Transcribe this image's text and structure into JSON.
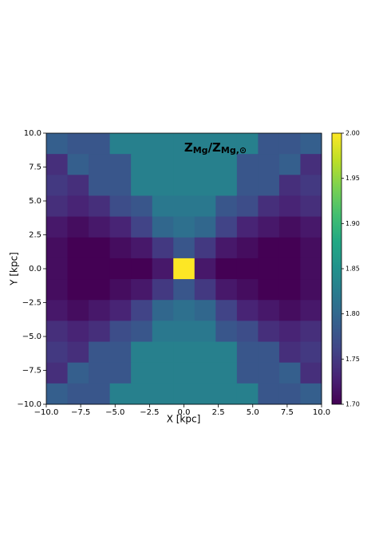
{
  "chart_data": {
    "type": "heatmap",
    "title": [
      "Z",
      "Mg",
      "/Z",
      "Mg,⊙"
    ],
    "x_label": "X [kpc]",
    "y_label": "Y [kpc]",
    "xlim": [
      -10,
      10
    ],
    "ylim": [
      -10,
      10
    ],
    "xticks": [
      {
        "value": -10,
        "label": "−10.0"
      },
      {
        "value": -7.5,
        "label": "−7.5"
      },
      {
        "value": -5,
        "label": "−5.0"
      },
      {
        "value": -2.5,
        "label": "−2.5"
      },
      {
        "value": 0,
        "label": "0.0"
      },
      {
        "value": 2.5,
        "label": "2.5"
      },
      {
        "value": 5,
        "label": "5.0"
      },
      {
        "value": 7.5,
        "label": "7.5"
      },
      {
        "value": 10,
        "label": "10.0"
      }
    ],
    "yticks": [
      {
        "value": -10,
        "label": "−10.0"
      },
      {
        "value": -7.5,
        "label": "−7.5"
      },
      {
        "value": -5,
        "label": "−5.0"
      },
      {
        "value": -2.5,
        "label": "−2.5"
      },
      {
        "value": 0,
        "label": "0.0"
      },
      {
        "value": 2.5,
        "label": "2.5"
      },
      {
        "value": 5,
        "label": "5.0"
      },
      {
        "value": 7.5,
        "label": "7.5"
      },
      {
        "value": 10,
        "label": "10.0"
      }
    ],
    "colormap": "viridis",
    "clim": [
      1.7,
      2.0
    ],
    "cticks": [
      {
        "value": 1.7,
        "label": "1.70"
      },
      1.75,
      {
        "value": 1.8,
        "label": "1.80"
      },
      1.85,
      {
        "value": 1.9,
        "label": "1.90"
      },
      1.95,
      {
        "value": 2.0,
        "label": "2.00"
      }
    ],
    "z": [
      [
        1.79,
        1.78,
        1.78,
        1.83,
        1.83,
        1.83,
        1.83,
        1.83,
        1.83,
        1.83,
        1.78,
        1.78,
        1.79
      ],
      [
        1.74,
        1.79,
        1.78,
        1.78,
        1.83,
        1.83,
        1.83,
        1.83,
        1.83,
        1.78,
        1.78,
        1.79,
        1.74
      ],
      [
        1.75,
        1.74,
        1.78,
        1.78,
        1.83,
        1.83,
        1.83,
        1.83,
        1.83,
        1.78,
        1.78,
        1.74,
        1.75
      ],
      [
        1.74,
        1.73,
        1.74,
        1.77,
        1.78,
        1.82,
        1.82,
        1.82,
        1.78,
        1.77,
        1.74,
        1.73,
        1.74
      ],
      [
        1.72,
        1.71,
        1.72,
        1.73,
        1.76,
        1.8,
        1.81,
        1.8,
        1.76,
        1.73,
        1.72,
        1.71,
        1.72
      ],
      [
        1.71,
        1.7,
        1.7,
        1.71,
        1.72,
        1.75,
        1.78,
        1.75,
        1.72,
        1.71,
        1.7,
        1.7,
        1.71
      ],
      [
        1.71,
        1.7,
        1.7,
        1.7,
        1.7,
        1.72,
        2.0,
        1.72,
        1.7,
        1.7,
        1.7,
        1.7,
        1.71
      ],
      [
        1.71,
        1.7,
        1.7,
        1.71,
        1.72,
        1.75,
        1.78,
        1.75,
        1.72,
        1.71,
        1.7,
        1.7,
        1.71
      ],
      [
        1.72,
        1.71,
        1.72,
        1.73,
        1.76,
        1.8,
        1.81,
        1.8,
        1.76,
        1.73,
        1.72,
        1.71,
        1.72
      ],
      [
        1.74,
        1.73,
        1.74,
        1.77,
        1.78,
        1.82,
        1.82,
        1.82,
        1.78,
        1.77,
        1.74,
        1.73,
        1.74
      ],
      [
        1.75,
        1.74,
        1.78,
        1.78,
        1.83,
        1.83,
        1.83,
        1.83,
        1.83,
        1.78,
        1.78,
        1.74,
        1.75
      ],
      [
        1.74,
        1.79,
        1.78,
        1.78,
        1.83,
        1.83,
        1.83,
        1.83,
        1.83,
        1.78,
        1.78,
        1.79,
        1.74
      ],
      [
        1.79,
        1.78,
        1.78,
        1.83,
        1.83,
        1.83,
        1.83,
        1.83,
        1.83,
        1.83,
        1.78,
        1.78,
        1.79
      ]
    ]
  }
}
